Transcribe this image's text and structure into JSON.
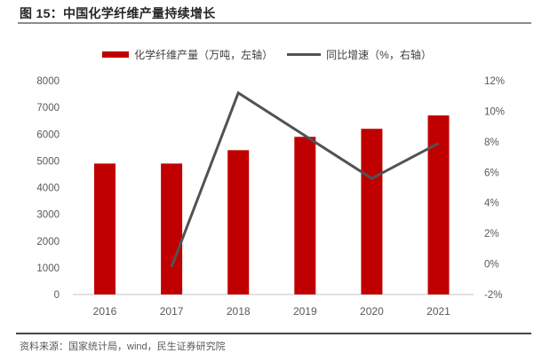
{
  "figure": {
    "title": "图 15：中国化学纤维产量持续增长",
    "source": "资料来源：国家统计局，wind，民生证券研究院"
  },
  "legend": [
    {
      "label": "化学纤维产量（万吨，左轴）",
      "marker": "bar-swatch",
      "color": "#c00000"
    },
    {
      "label": "同比增速（%，右轴）",
      "marker": "line-swatch",
      "color": "#525252"
    }
  ],
  "chart_data": {
    "type": "combo",
    "categories": [
      "2016",
      "2017",
      "2018",
      "2019",
      "2020",
      "2021"
    ],
    "series": [
      {
        "name": "化学纤维产量（万吨，左轴）",
        "type": "bar",
        "axis": "left",
        "color": "#c00000",
        "values": [
          4900,
          4900,
          5400,
          5900,
          6200,
          6700
        ]
      },
      {
        "name": "同比增速（%，右轴）",
        "type": "line",
        "axis": "right",
        "color": "#525252",
        "values": [
          null,
          -0.2,
          11.2,
          8.4,
          5.6,
          7.9
        ]
      }
    ],
    "left_axis": {
      "min": 0,
      "max": 8000,
      "step": 1000,
      "ticks": [
        "0",
        "1000",
        "2000",
        "3000",
        "4000",
        "5000",
        "6000",
        "7000",
        "8000"
      ]
    },
    "right_axis": {
      "min": -2,
      "max": 12,
      "step": 2,
      "ticks": [
        "-2%",
        "0%",
        "2%",
        "4%",
        "6%",
        "8%",
        "10%",
        "12%"
      ]
    },
    "grid": false,
    "legend_position": "top",
    "axis_text_color": "#595959",
    "baseline_color": "#d9d9d9"
  }
}
